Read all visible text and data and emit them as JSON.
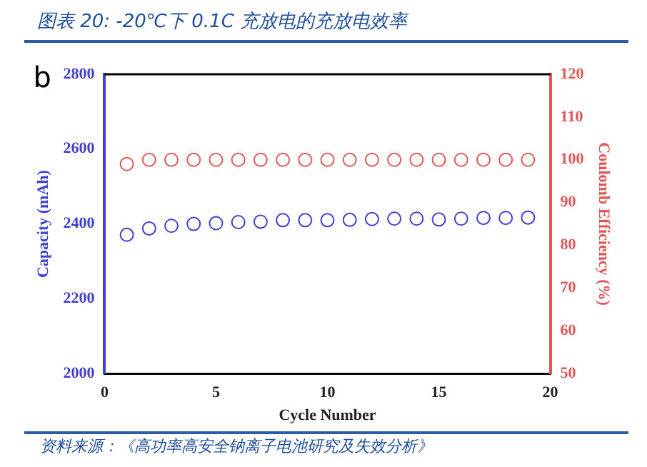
{
  "chart_data": {
    "type": "scatter",
    "title": "图表 20:  -20℃下 0.1C 充放电的充放电效率",
    "xlabel": "Cycle Number",
    "ylabel": "Capacity (mAh)",
    "y2label": "Coulomb Efficiency (%)",
    "annotations": [
      "b",
      "资料来源：《高功率高安全钠离子电池研究及失效分析》"
    ],
    "x": [
      1,
      2,
      3,
      4,
      5,
      6,
      7,
      8,
      9,
      10,
      11,
      12,
      13,
      14,
      15,
      16,
      17,
      18,
      19
    ],
    "series": [
      {
        "color": "#4040d0",
        "values": [
          2371,
          2388,
          2395,
          2400,
          2402,
          2405,
          2406,
          2410,
          2410,
          2410,
          2411,
          2413,
          2414,
          2414,
          2412,
          2414,
          2416,
          2416,
          2417
        ]
      },
      {
        "color": "#e05555",
        "axis": "y2",
        "values": [
          99,
          100,
          100,
          100,
          100,
          100,
          100,
          100,
          100,
          100,
          100,
          100,
          100,
          100,
          100,
          100,
          100,
          100,
          100
        ]
      }
    ],
    "xlim": [
      0,
      20
    ],
    "xticks": [
      0,
      5,
      10,
      15,
      20
    ],
    "ylim": [
      2000,
      2800
    ],
    "yticks": [
      2000,
      2200,
      2400,
      2600,
      2800
    ],
    "y2lim": [
      50,
      120
    ],
    "y2ticks": [
      50,
      60,
      70,
      80,
      90,
      100,
      110,
      120
    ],
    "grid": false,
    "legend": false,
    "marker": "circle"
  }
}
